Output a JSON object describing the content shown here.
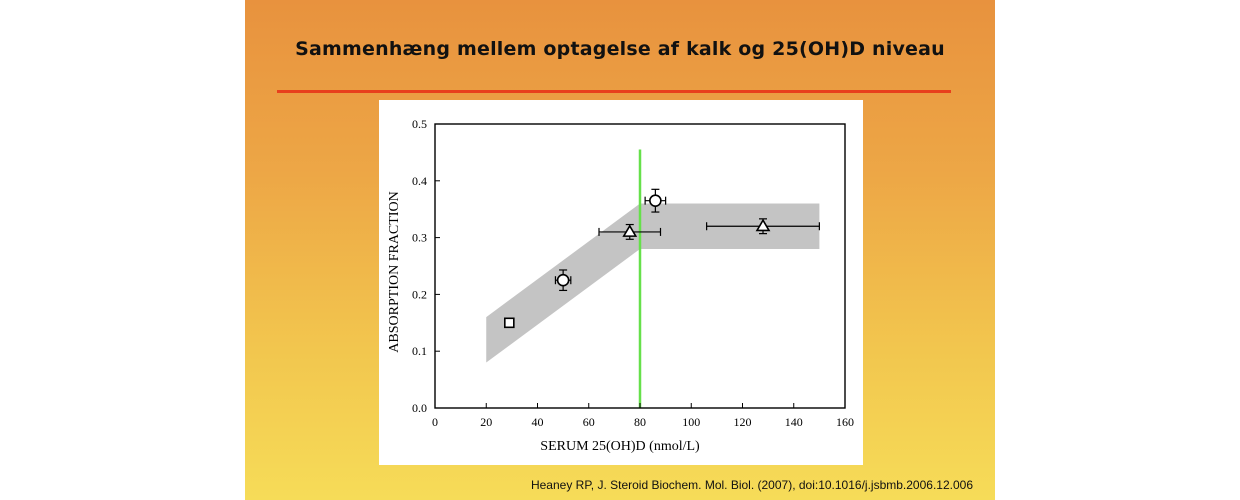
{
  "slide": {
    "title": "Sammenhæng mellem optagelse af kalk og 25(OH)D niveau",
    "citation": "Heaney RP, J. Steroid Biochem. Mol. Biol. (2007), doi:10.1016/j.jsbmb.2006.12.006",
    "colors": {
      "gradient_top": "#e8923e",
      "gradient_bottom": "#f6dc58",
      "title_rule": "#e8401c",
      "threshold_line": "#66e04a",
      "band": "#c4c4c4"
    }
  },
  "chart_data": {
    "type": "scatter",
    "title": "",
    "xlabel": "SERUM 25(OH)D (nmol/L)",
    "ylabel": "ABSORPTION FRACTION",
    "xlim": [
      0,
      160
    ],
    "ylim": [
      0,
      0.5
    ],
    "x_ticks": [
      "0",
      "20",
      "40",
      "60",
      "80",
      "100",
      "120",
      "140",
      "160"
    ],
    "y_ticks": [
      "0.0",
      "0.1",
      "0.2",
      "0.3",
      "0.4",
      "0.5"
    ],
    "grid": false,
    "legend": "none",
    "threshold_line": {
      "x": 80,
      "y_range": [
        0,
        0.455
      ],
      "color": "#66e04a"
    },
    "band": {
      "upper": [
        [
          20,
          0.16
        ],
        [
          80,
          0.36
        ],
        [
          150,
          0.36
        ]
      ],
      "lower": [
        [
          20,
          0.08
        ],
        [
          80,
          0.28
        ],
        [
          150,
          0.28
        ]
      ]
    },
    "points": [
      {
        "marker": "square",
        "x": 29,
        "y": 0.15
      },
      {
        "marker": "circle",
        "x": 50,
        "y": 0.225,
        "xerr": 3,
        "yerr": 0.018
      },
      {
        "marker": "triangle",
        "x": 76,
        "y": 0.31,
        "xerr": [
          12,
          12
        ],
        "yerr": 0.013
      },
      {
        "marker": "circle",
        "x": 86,
        "y": 0.365,
        "xerr": 4,
        "yerr": 0.02
      },
      {
        "marker": "triangle",
        "x": 128,
        "y": 0.32,
        "xerr": [
          22,
          22
        ],
        "yerr": 0.013
      }
    ]
  }
}
